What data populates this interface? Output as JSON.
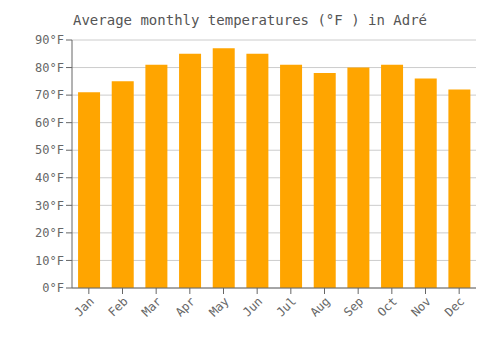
{
  "chart_data": {
    "type": "bar",
    "title": "Average monthly temperatures (°F ) in Adré",
    "categories": [
      "Jan",
      "Feb",
      "Mar",
      "Apr",
      "May",
      "Jun",
      "Jul",
      "Aug",
      "Sep",
      "Oct",
      "Nov",
      "Dec"
    ],
    "values": [
      71,
      75,
      81,
      85,
      87,
      85,
      81,
      78,
      80,
      81,
      76,
      72
    ],
    "color": "#FFA500",
    "ylim": [
      0,
      90
    ],
    "yticks": [
      {
        "value": 0,
        "label": "0°F"
      },
      {
        "value": 10,
        "label": "10°F"
      },
      {
        "value": 20,
        "label": "20°F"
      },
      {
        "value": 30,
        "label": "30°F"
      },
      {
        "value": 40,
        "label": "40°F"
      },
      {
        "value": 50,
        "label": "50°F"
      },
      {
        "value": 60,
        "label": "60°F"
      },
      {
        "value": 70,
        "label": "70°F"
      },
      {
        "value": 80,
        "label": "80°F"
      },
      {
        "value": 90,
        "label": "90°F"
      }
    ],
    "grid": true
  }
}
